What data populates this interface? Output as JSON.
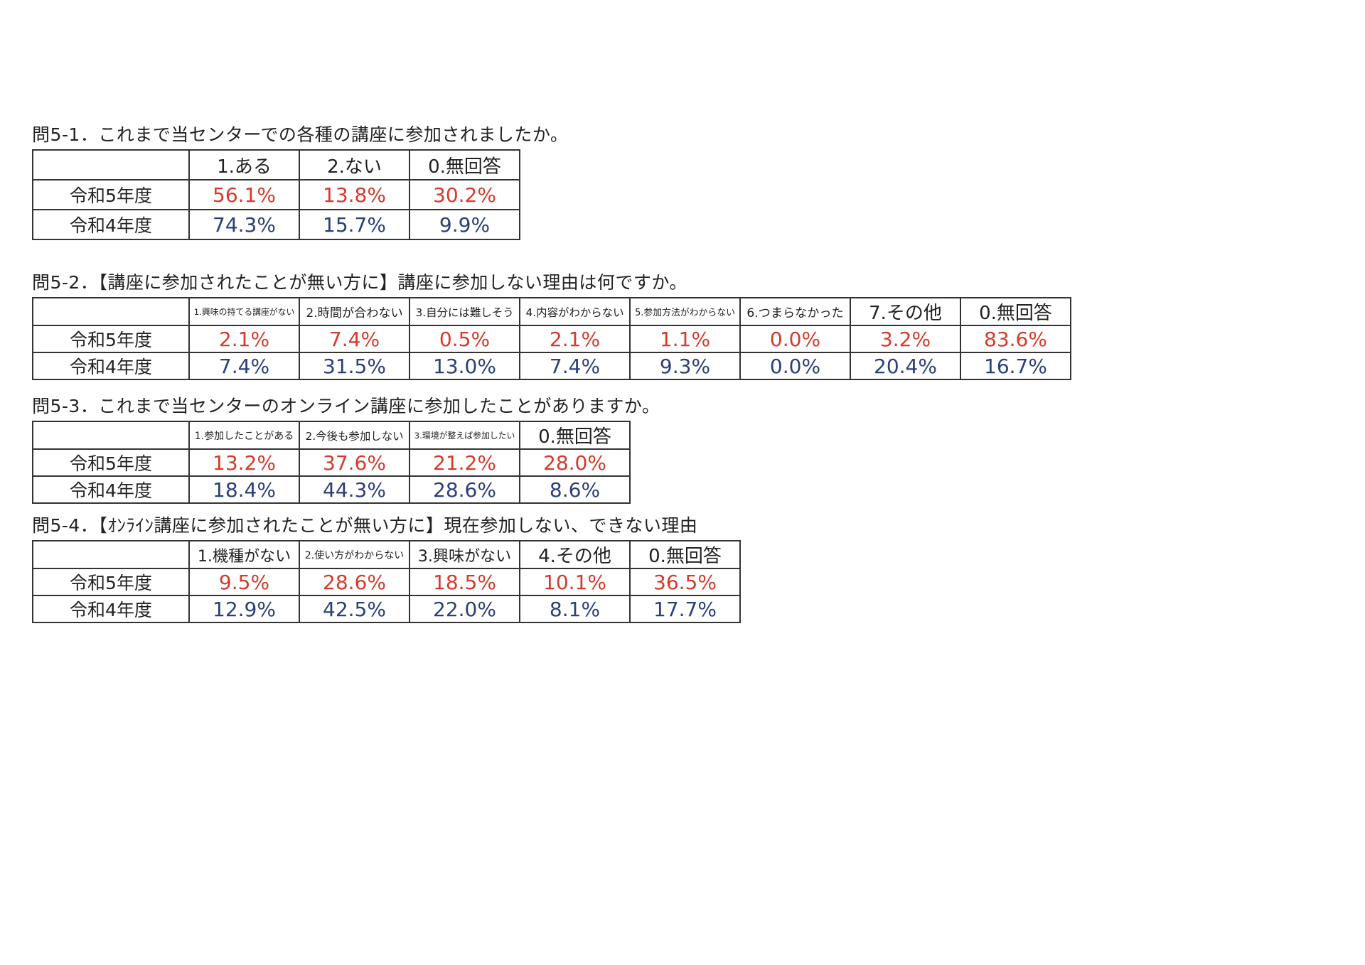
{
  "sections": [
    {
      "title": "問5-1．これまで当センターでの各種の講座に参加されましたか。",
      "columns": [
        "1.ある",
        "2.ない",
        "0.無回答"
      ],
      "rows": [
        {
          "label": "令和5年度",
          "values": [
            "56.1%",
            "13.8%",
            "30.2%"
          ]
        },
        {
          "label": "令和4年度",
          "values": [
            "74.3%",
            "15.7%",
            "9.9%"
          ]
        }
      ]
    },
    {
      "title": "問5-2．【講座に参加されたことが無い方に】講座に参加しない理由は何ですか。",
      "columns": [
        "1.興味の持てる講座がない",
        "2.時間が合わない",
        "3.自分には難しそう",
        "4.内容がわからない",
        "5.参加方法がわからない",
        "6.つまらなかった",
        "7.その他",
        "0.無回答"
      ],
      "rows": [
        {
          "label": "令和5年度",
          "values": [
            "2.1%",
            "7.4%",
            "0.5%",
            "2.1%",
            "1.1%",
            "0.0%",
            "3.2%",
            "83.6%"
          ]
        },
        {
          "label": "令和4年度",
          "values": [
            "7.4%",
            "31.5%",
            "13.0%",
            "7.4%",
            "9.3%",
            "0.0%",
            "20.4%",
            "16.7%"
          ]
        }
      ]
    },
    {
      "title": "問5-3．これまで当センターのオンライン講座に参加したことがありますか。",
      "columns": [
        "1.参加したことがある",
        "2.今後も参加しない",
        "3.環境が整えば参加したい",
        "0.無回答"
      ],
      "rows": [
        {
          "label": "令和5年度",
          "values": [
            "13.2%",
            "37.6%",
            "21.2%",
            "28.0%"
          ]
        },
        {
          "label": "令和4年度",
          "values": [
            "18.4%",
            "44.3%",
            "28.6%",
            "8.6%"
          ]
        }
      ]
    },
    {
      "title": "問5-4．【ｵﾝﾗｲﾝ講座に参加されたことが無い方に】現在参加しない、できない理由",
      "columns": [
        "1.機種がない",
        "2.使い方がわからない",
        "3.興味がない",
        "4.その他",
        "0.無回答"
      ],
      "rows": [
        {
          "label": "令和5年度",
          "values": [
            "9.5%",
            "28.6%",
            "18.5%",
            "10.1%",
            "36.5%"
          ]
        },
        {
          "label": "令和4年度",
          "values": [
            "12.9%",
            "42.5%",
            "22.0%",
            "8.1%",
            "17.7%"
          ]
        }
      ]
    }
  ]
}
